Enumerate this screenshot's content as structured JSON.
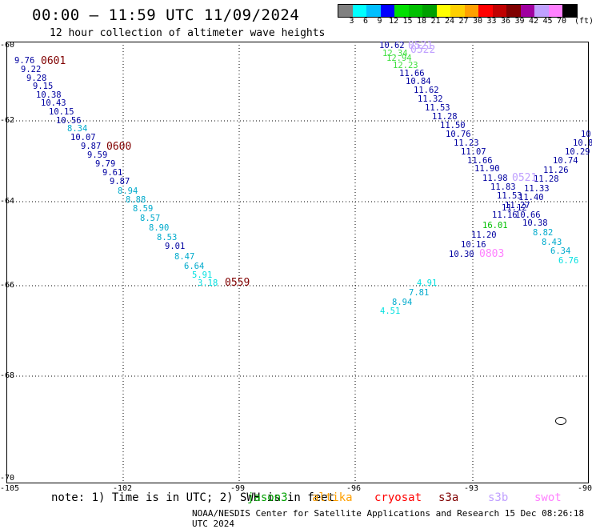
{
  "header": {
    "title": "00:00 – 11:59 UTC 11/09/2024",
    "subtitle": "12 hour collection of altimeter wave heights"
  },
  "colorbar": {
    "colors": [
      "#808080",
      "#00ffff",
      "#00bfff",
      "#0000ff",
      "#00e000",
      "#00c000",
      "#00a000",
      "#ffff00",
      "#ffd000",
      "#ffa000",
      "#ff0000",
      "#c00000",
      "#800000",
      "#a000a0",
      "#c0a0ff",
      "#ff80ff",
      "#000000"
    ],
    "labels": [
      "3",
      "6",
      "9",
      "12",
      "15",
      "18",
      "21",
      "24",
      "27",
      "30",
      "33",
      "36",
      "39",
      "42",
      "45",
      "70"
    ],
    "unit": "(ft)"
  },
  "map": {
    "lat_labels": [
      "-60",
      "-62",
      "-64",
      "-66",
      "-68",
      "-70"
    ],
    "lon_labels": [
      "-105",
      "-102",
      "-99",
      "-96",
      "-93",
      "-90"
    ],
    "passes": [
      {
        "label": "0601",
        "color": "#800000"
      },
      {
        "label": "0600",
        "color": "#800000"
      },
      {
        "label": "0559",
        "color": "#800000"
      },
      {
        "label": "0521",
        "color": "#c0a0ff"
      },
      {
        "label": "0522",
        "color": "#c0a0ff"
      },
      {
        "label": "0521",
        "color": "#c0a0ff"
      },
      {
        "label": "0803",
        "color": "#ff80ff"
      }
    ],
    "points": [
      {
        "v": "9.76",
        "c": "#0000a0"
      },
      {
        "v": "9.22",
        "c": "#0000a0"
      },
      {
        "v": "9.28",
        "c": "#0000a0"
      },
      {
        "v": "9.15",
        "c": "#0000a0"
      },
      {
        "v": "10.38",
        "c": "#0000a0"
      },
      {
        "v": "10.43",
        "c": "#0000a0"
      },
      {
        "v": "10.15",
        "c": "#0000a0"
      },
      {
        "v": "10.56",
        "c": "#0000a0"
      },
      {
        "v": "8.34",
        "c": "#00aacc"
      },
      {
        "v": "10.07",
        "c": "#0000a0"
      },
      {
        "v": "9.87",
        "c": "#0000a0"
      },
      {
        "v": "9.59",
        "c": "#0000a0"
      },
      {
        "v": "9.79",
        "c": "#0000a0"
      },
      {
        "v": "9.61",
        "c": "#0000a0"
      },
      {
        "v": "9.87",
        "c": "#0000a0"
      },
      {
        "v": "8.94",
        "c": "#00aacc"
      },
      {
        "v": "8.88",
        "c": "#00aacc"
      },
      {
        "v": "8.59",
        "c": "#00aacc"
      },
      {
        "v": "8.57",
        "c": "#00aacc"
      },
      {
        "v": "8.90",
        "c": "#00aacc"
      },
      {
        "v": "8.53",
        "c": "#00aacc"
      },
      {
        "v": "9.01",
        "c": "#0000a0"
      },
      {
        "v": "8.47",
        "c": "#00aacc"
      },
      {
        "v": "6.64",
        "c": "#00aacc"
      },
      {
        "v": "5.91",
        "c": "#00e0e0"
      },
      {
        "v": "3.18",
        "c": "#00e0e0"
      },
      {
        "v": "10.62",
        "c": "#0000a0"
      },
      {
        "v": "12.34",
        "c": "#40e040"
      },
      {
        "v": "12.94",
        "c": "#40e040"
      },
      {
        "v": "12.23",
        "c": "#40e040"
      },
      {
        "v": "11.66",
        "c": "#0000a0"
      },
      {
        "v": "10.84",
        "c": "#0000a0"
      },
      {
        "v": "11.62",
        "c": "#0000a0"
      },
      {
        "v": "11.32",
        "c": "#0000a0"
      },
      {
        "v": "11.53",
        "c": "#0000a0"
      },
      {
        "v": "11.28",
        "c": "#0000a0"
      },
      {
        "v": "11.50",
        "c": "#0000a0"
      },
      {
        "v": "10.76",
        "c": "#0000a0"
      },
      {
        "v": "11.23",
        "c": "#0000a0"
      },
      {
        "v": "11.07",
        "c": "#0000a0"
      },
      {
        "v": "11.66",
        "c": "#0000a0"
      },
      {
        "v": "11.90",
        "c": "#0000a0"
      },
      {
        "v": "11.98",
        "c": "#0000a0"
      },
      {
        "v": "11.83",
        "c": "#0000a0"
      },
      {
        "v": "11.53",
        "c": "#0000a0"
      },
      {
        "v": "11.27",
        "c": "#0000a0"
      },
      {
        "v": "11.16",
        "c": "#0000a0"
      },
      {
        "v": "11.20",
        "c": "#0000a0"
      },
      {
        "v": "10.16",
        "c": "#0000a0"
      },
      {
        "v": "10.30",
        "c": "#0000a0"
      },
      {
        "v": "16.01",
        "c": "#00c000"
      },
      {
        "v": "10",
        "c": "#0000a0"
      },
      {
        "v": "10.8",
        "c": "#0000a0"
      },
      {
        "v": "10.29",
        "c": "#0000a0"
      },
      {
        "v": "10.74",
        "c": "#0000a0"
      },
      {
        "v": "11.26",
        "c": "#0000a0"
      },
      {
        "v": "11.28",
        "c": "#0000a0"
      },
      {
        "v": "11.33",
        "c": "#0000a0"
      },
      {
        "v": "11.40",
        "c": "#0000a0"
      },
      {
        "v": "11.12",
        "c": "#0000a0"
      },
      {
        "v": "10.66",
        "c": "#0000a0"
      },
      {
        "v": "10.38",
        "c": "#0000a0"
      },
      {
        "v": "8.82",
        "c": "#00aacc"
      },
      {
        "v": "8.43",
        "c": "#00aacc"
      },
      {
        "v": "6.34",
        "c": "#00aacc"
      },
      {
        "v": "6.76",
        "c": "#00e0e0"
      },
      {
        "v": "4.91",
        "c": "#00e0e0"
      },
      {
        "v": "7.81",
        "c": "#00aacc"
      },
      {
        "v": "8.94",
        "c": "#00aacc"
      },
      {
        "v": "4.51",
        "c": "#00e0e0"
      }
    ]
  },
  "note": {
    "text": "note: 1) Time is in UTC; 2) SWH is in feet",
    "legend": [
      {
        "name": "jason3",
        "color": "#00a000"
      },
      {
        "name": "altika",
        "color": "#ffa000"
      },
      {
        "name": "cryosat",
        "color": "#ff0000"
      },
      {
        "name": "s3a",
        "color": "#800000"
      },
      {
        "name": "s3b",
        "color": "#c0a0ff"
      },
      {
        "name": "swot",
        "color": "#ff80ff"
      }
    ]
  },
  "footer": "NOAA/NESDIS Center for Satellite Applications and Research   15 Dec 08:26:18 UTC 2024"
}
